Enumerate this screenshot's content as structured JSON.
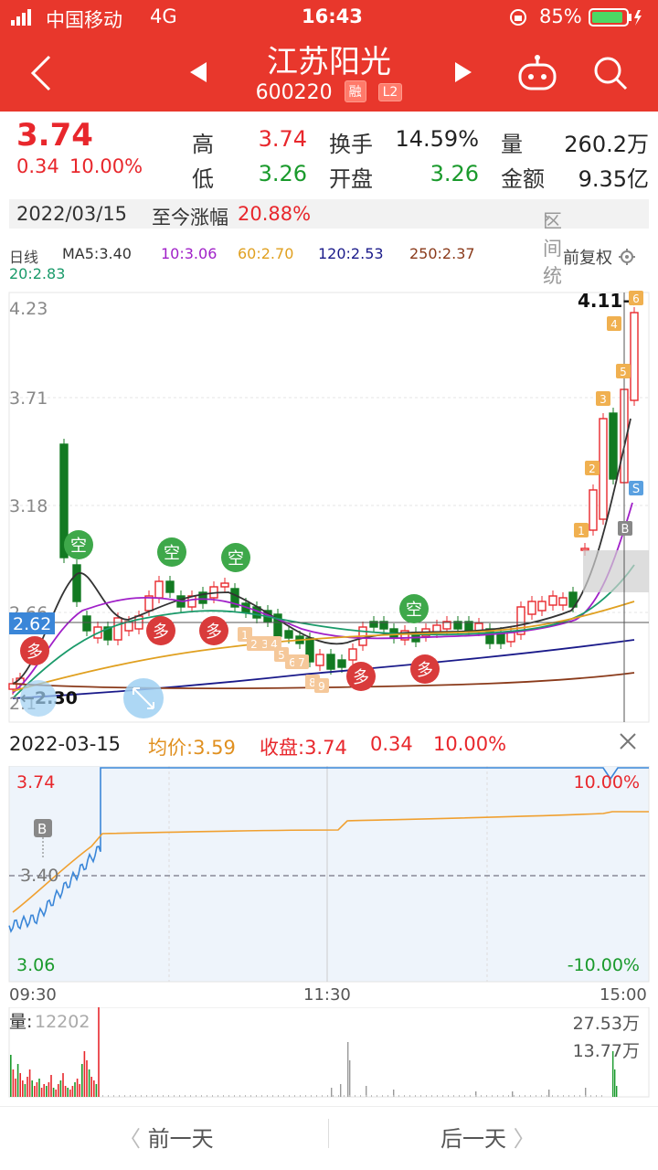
{
  "status_bar": {
    "carrier": "中国移动",
    "network": "4G",
    "time": "16:43",
    "battery": "85%"
  },
  "header": {
    "stock_name": "江苏阳光",
    "stock_code": "600220",
    "tag_rong": "融",
    "tag_l2": "L2"
  },
  "quote": {
    "price": "3.74",
    "change": "0.34",
    "change_pct": "10.00%",
    "high_label": "高",
    "high": "3.74",
    "low_label": "低",
    "low": "3.26",
    "turnover_label": "换手",
    "turnover": "14.59%",
    "open_label": "开盘",
    "open": "3.26",
    "volume_label": "量",
    "volume": "260.2万",
    "amount_label": "金额",
    "amount": "9.35亿"
  },
  "date_bar": {
    "date": "2022/03/15",
    "rise_label": "至今涨幅",
    "rise": "20.88%",
    "range_stats": "区间统计"
  },
  "indicators": {
    "period": "日线",
    "ma5": "MA5:3.40",
    "ma10": "10:3.06",
    "ma60": "60:2.70",
    "ma120": "120:2.53",
    "ma250": "250:2.37",
    "ma20": "20:2.83",
    "adjust": "前复权",
    "colors": {
      "ma5": "#333333",
      "ma10": "#a020c8",
      "ma20": "#1a9a6a",
      "ma60": "#e0a020",
      "ma120": "#1a1a8a",
      "ma250": "#8a3a1a"
    }
  },
  "kline": {
    "y_labels": [
      "4.23",
      "3.71",
      "3.18",
      "2.66",
      "2.1"
    ],
    "current_price_tag": "2.62",
    "high_marker": "4.11→",
    "low_marker": "←2.30",
    "signals": {
      "short": "空",
      "long": "多",
      "buy": "B",
      "sell": "S"
    },
    "count_labels_early": [
      "1",
      "2",
      "3",
      "4",
      "5",
      "6",
      "7",
      "8",
      "9"
    ],
    "count_labels_late": [
      "1",
      "2",
      "3",
      "4",
      "5",
      "6"
    ]
  },
  "intraday": {
    "date": "2022-03-15",
    "avg_label": "均价:3.59",
    "close_label": "收盘:3.74",
    "change": "0.34",
    "change_pct": "10.00%",
    "y_top": "3.74",
    "y_mid": "3.40",
    "y_bottom": "3.06",
    "pct_top": "10.00%",
    "pct_bottom": "-10.00%",
    "times": [
      "09:30",
      "11:30",
      "15:00"
    ],
    "buy_marker": "B",
    "colors": {
      "price": "#3a86d8",
      "avg": "#f0a030"
    }
  },
  "volume": {
    "label": "量:",
    "value": "12202",
    "max1": "27.53万",
    "max2": "13.77万"
  },
  "footer": {
    "prev": "前一天",
    "next": "后一天"
  }
}
